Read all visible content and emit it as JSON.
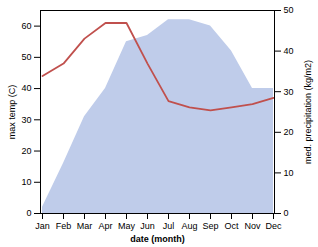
{
  "chart_data": {
    "type": "line",
    "xlabel": "date (month)",
    "ylabel": "max temp (C)",
    "y2label": "med. precipitation (kg/m2)",
    "categories": [
      "Jan",
      "Feb",
      "Mar",
      "Apr",
      "May",
      "Jun",
      "Jul",
      "Aug",
      "Sep",
      "Oct",
      "Nov",
      "Dec"
    ],
    "series": [
      {
        "type": "area",
        "color": "#bfccea",
        "values": [
          2,
          16,
          31,
          40,
          55,
          57,
          62,
          62,
          60,
          52,
          40,
          40
        ]
      },
      {
        "type": "line",
        "color": "#c0504d",
        "values": [
          44,
          48,
          56,
          61,
          61,
          48,
          36,
          34,
          33,
          34,
          35,
          37
        ]
      }
    ],
    "ylim": [
      0,
      65
    ],
    "yticks": [
      0,
      10,
      20,
      30,
      40,
      50,
      60
    ],
    "y2lim": [
      0,
      50
    ],
    "y2ticks": [
      0,
      10,
      20,
      30,
      40,
      50
    ],
    "grid": false
  }
}
